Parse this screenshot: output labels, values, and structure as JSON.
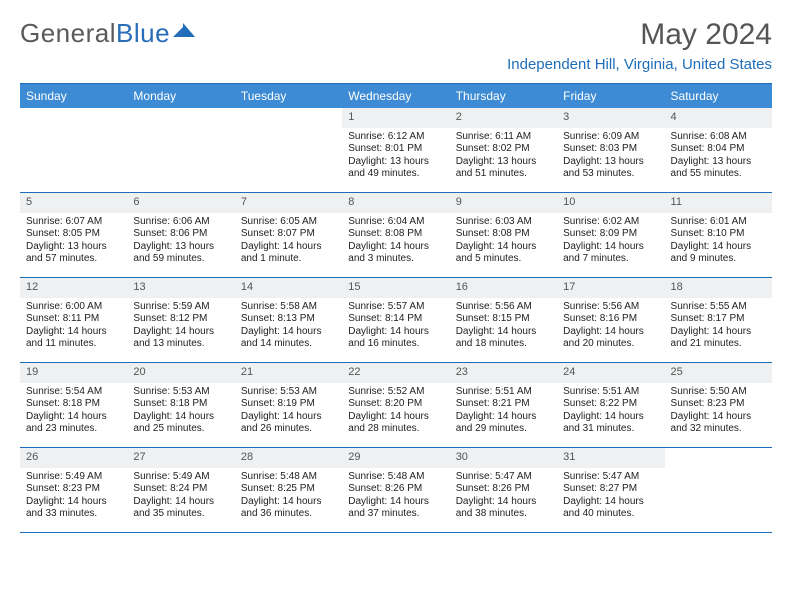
{
  "logo": {
    "text1": "General",
    "text2": "Blue"
  },
  "title": "May 2024",
  "location": "Independent Hill, Virginia, United States",
  "dayNames": [
    "Sunday",
    "Monday",
    "Tuesday",
    "Wednesday",
    "Thursday",
    "Friday",
    "Saturday"
  ],
  "colors": {
    "headerBg": "#3d8bd4",
    "border": "#1e6db8",
    "dateBg": "#eef0f2",
    "logoGray": "#5a5a5a",
    "logoBlue": "#2a6db8"
  },
  "weeks": [
    [
      {
        "d": "",
        "r": "",
        "s": "",
        "l": ""
      },
      {
        "d": "",
        "r": "",
        "s": "",
        "l": ""
      },
      {
        "d": "",
        "r": "",
        "s": "",
        "l": ""
      },
      {
        "d": "1",
        "r": "Sunrise: 6:12 AM",
        "s": "Sunset: 8:01 PM",
        "l": "Daylight: 13 hours and 49 minutes."
      },
      {
        "d": "2",
        "r": "Sunrise: 6:11 AM",
        "s": "Sunset: 8:02 PM",
        "l": "Daylight: 13 hours and 51 minutes."
      },
      {
        "d": "3",
        "r": "Sunrise: 6:09 AM",
        "s": "Sunset: 8:03 PM",
        "l": "Daylight: 13 hours and 53 minutes."
      },
      {
        "d": "4",
        "r": "Sunrise: 6:08 AM",
        "s": "Sunset: 8:04 PM",
        "l": "Daylight: 13 hours and 55 minutes."
      }
    ],
    [
      {
        "d": "5",
        "r": "Sunrise: 6:07 AM",
        "s": "Sunset: 8:05 PM",
        "l": "Daylight: 13 hours and 57 minutes."
      },
      {
        "d": "6",
        "r": "Sunrise: 6:06 AM",
        "s": "Sunset: 8:06 PM",
        "l": "Daylight: 13 hours and 59 minutes."
      },
      {
        "d": "7",
        "r": "Sunrise: 6:05 AM",
        "s": "Sunset: 8:07 PM",
        "l": "Daylight: 14 hours and 1 minute."
      },
      {
        "d": "8",
        "r": "Sunrise: 6:04 AM",
        "s": "Sunset: 8:08 PM",
        "l": "Daylight: 14 hours and 3 minutes."
      },
      {
        "d": "9",
        "r": "Sunrise: 6:03 AM",
        "s": "Sunset: 8:08 PM",
        "l": "Daylight: 14 hours and 5 minutes."
      },
      {
        "d": "10",
        "r": "Sunrise: 6:02 AM",
        "s": "Sunset: 8:09 PM",
        "l": "Daylight: 14 hours and 7 minutes."
      },
      {
        "d": "11",
        "r": "Sunrise: 6:01 AM",
        "s": "Sunset: 8:10 PM",
        "l": "Daylight: 14 hours and 9 minutes."
      }
    ],
    [
      {
        "d": "12",
        "r": "Sunrise: 6:00 AM",
        "s": "Sunset: 8:11 PM",
        "l": "Daylight: 14 hours and 11 minutes."
      },
      {
        "d": "13",
        "r": "Sunrise: 5:59 AM",
        "s": "Sunset: 8:12 PM",
        "l": "Daylight: 14 hours and 13 minutes."
      },
      {
        "d": "14",
        "r": "Sunrise: 5:58 AM",
        "s": "Sunset: 8:13 PM",
        "l": "Daylight: 14 hours and 14 minutes."
      },
      {
        "d": "15",
        "r": "Sunrise: 5:57 AM",
        "s": "Sunset: 8:14 PM",
        "l": "Daylight: 14 hours and 16 minutes."
      },
      {
        "d": "16",
        "r": "Sunrise: 5:56 AM",
        "s": "Sunset: 8:15 PM",
        "l": "Daylight: 14 hours and 18 minutes."
      },
      {
        "d": "17",
        "r": "Sunrise: 5:56 AM",
        "s": "Sunset: 8:16 PM",
        "l": "Daylight: 14 hours and 20 minutes."
      },
      {
        "d": "18",
        "r": "Sunrise: 5:55 AM",
        "s": "Sunset: 8:17 PM",
        "l": "Daylight: 14 hours and 21 minutes."
      }
    ],
    [
      {
        "d": "19",
        "r": "Sunrise: 5:54 AM",
        "s": "Sunset: 8:18 PM",
        "l": "Daylight: 14 hours and 23 minutes."
      },
      {
        "d": "20",
        "r": "Sunrise: 5:53 AM",
        "s": "Sunset: 8:18 PM",
        "l": "Daylight: 14 hours and 25 minutes."
      },
      {
        "d": "21",
        "r": "Sunrise: 5:53 AM",
        "s": "Sunset: 8:19 PM",
        "l": "Daylight: 14 hours and 26 minutes."
      },
      {
        "d": "22",
        "r": "Sunrise: 5:52 AM",
        "s": "Sunset: 8:20 PM",
        "l": "Daylight: 14 hours and 28 minutes."
      },
      {
        "d": "23",
        "r": "Sunrise: 5:51 AM",
        "s": "Sunset: 8:21 PM",
        "l": "Daylight: 14 hours and 29 minutes."
      },
      {
        "d": "24",
        "r": "Sunrise: 5:51 AM",
        "s": "Sunset: 8:22 PM",
        "l": "Daylight: 14 hours and 31 minutes."
      },
      {
        "d": "25",
        "r": "Sunrise: 5:50 AM",
        "s": "Sunset: 8:23 PM",
        "l": "Daylight: 14 hours and 32 minutes."
      }
    ],
    [
      {
        "d": "26",
        "r": "Sunrise: 5:49 AM",
        "s": "Sunset: 8:23 PM",
        "l": "Daylight: 14 hours and 33 minutes."
      },
      {
        "d": "27",
        "r": "Sunrise: 5:49 AM",
        "s": "Sunset: 8:24 PM",
        "l": "Daylight: 14 hours and 35 minutes."
      },
      {
        "d": "28",
        "r": "Sunrise: 5:48 AM",
        "s": "Sunset: 8:25 PM",
        "l": "Daylight: 14 hours and 36 minutes."
      },
      {
        "d": "29",
        "r": "Sunrise: 5:48 AM",
        "s": "Sunset: 8:26 PM",
        "l": "Daylight: 14 hours and 37 minutes."
      },
      {
        "d": "30",
        "r": "Sunrise: 5:47 AM",
        "s": "Sunset: 8:26 PM",
        "l": "Daylight: 14 hours and 38 minutes."
      },
      {
        "d": "31",
        "r": "Sunrise: 5:47 AM",
        "s": "Sunset: 8:27 PM",
        "l": "Daylight: 14 hours and 40 minutes."
      },
      {
        "d": "",
        "r": "",
        "s": "",
        "l": ""
      }
    ]
  ]
}
